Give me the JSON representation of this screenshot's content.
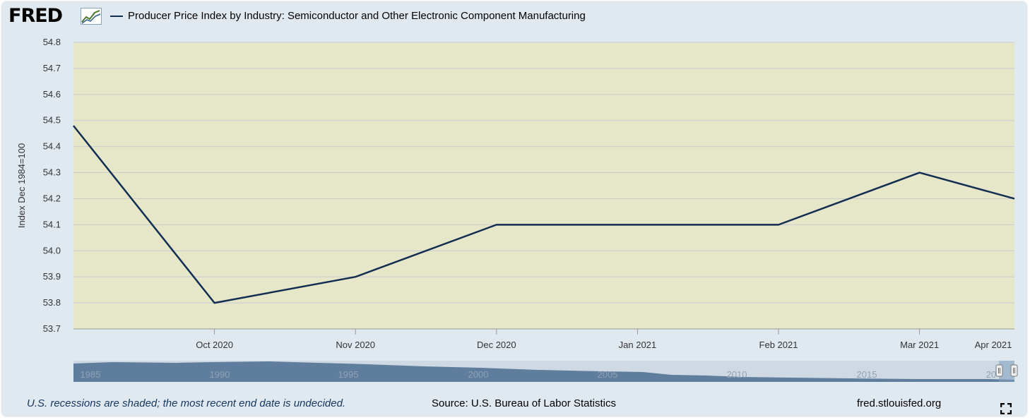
{
  "header": {
    "logo_text": "FRED",
    "logo_icon": "trend-graph-icon",
    "legend_label": "Producer Price Index by Industry: Semiconductor and Other Electronic Component Manufacturing"
  },
  "chart_data": {
    "type": "line",
    "title": "",
    "ylabel": "Index Dec 1984=100",
    "ylim": [
      53.7,
      54.8
    ],
    "y_ticks": [
      "54.8",
      "54.7",
      "54.6",
      "54.5",
      "54.4",
      "54.3",
      "54.2",
      "54.1",
      "54.0",
      "53.9",
      "53.8",
      "53.7"
    ],
    "x_ticks": [
      "Oct 2020",
      "Nov 2020",
      "Dec 2020",
      "Jan 2021",
      "Feb 2021",
      "Mar 2021",
      "Apr 2021"
    ],
    "x": [
      "2020-09",
      "2020-10",
      "2020-11",
      "2020-12",
      "2021-01",
      "2021-02",
      "2021-03",
      "2021-04"
    ],
    "series": [
      {
        "name": "Producer Price Index by Industry: Semiconductor and Other Electronic Component Manufacturing",
        "values": [
          54.48,
          53.8,
          53.9,
          54.1,
          54.1,
          54.1,
          54.3,
          54.2
        ]
      }
    ],
    "grid": true,
    "legend": "top",
    "colors": {
      "line": "#112e51",
      "plot_background": "#e6e6c9",
      "frame": "#e1e9f0"
    },
    "navigator": {
      "labels": [
        "1985",
        "1990",
        "1995",
        "2000",
        "2005",
        "2010",
        "2015",
        "20"
      ]
    }
  },
  "footer": {
    "recession_note": "U.S. recessions are shaded; the most recent end date is undecided.",
    "source": "Source: U.S. Bureau of Labor Statistics",
    "url": "fred.stlouisfed.org",
    "fullscreen_icon": "fullscreen-icon"
  }
}
